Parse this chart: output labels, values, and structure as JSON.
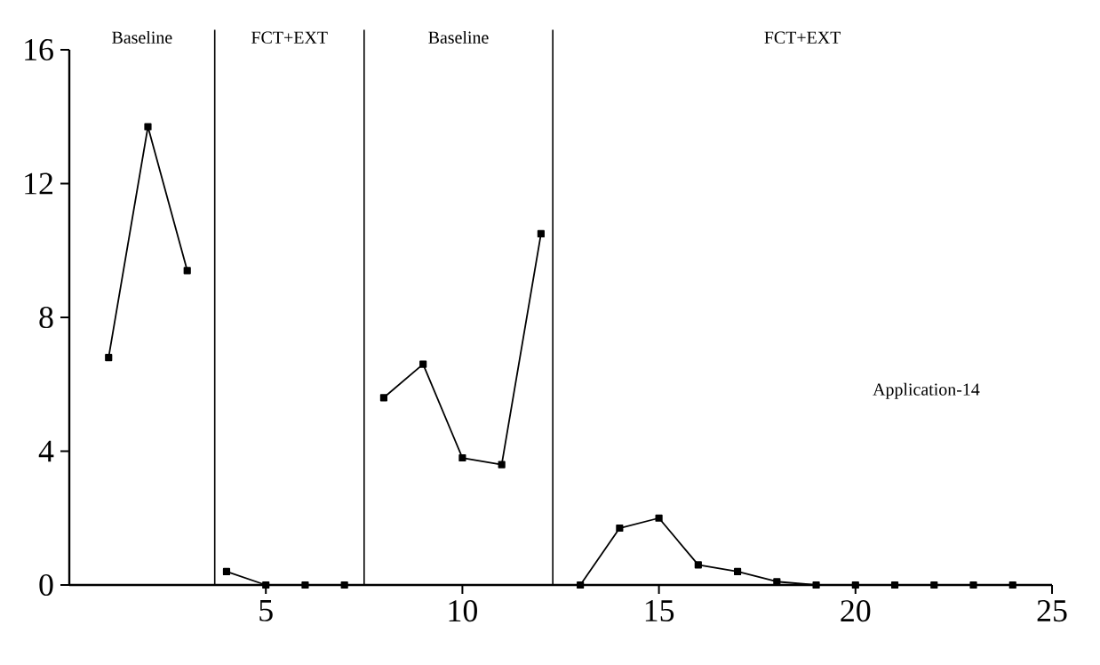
{
  "chart_data": {
    "type": "line",
    "xlim": [
      0,
      25
    ],
    "ylim": [
      0,
      16
    ],
    "xticks": [
      5,
      10,
      15,
      20,
      25
    ],
    "yticks": [
      0,
      4,
      8,
      12,
      16
    ],
    "grid": false,
    "marker": "square",
    "line_style": "solid",
    "series": [
      {
        "color": "#000000",
        "x": [
          1,
          2,
          3
        ],
        "values": [
          6.8,
          13.7,
          9.4
        ]
      },
      {
        "color": "#000000",
        "x": [
          4,
          5,
          6,
          7
        ],
        "values": [
          0.4,
          0,
          0,
          0
        ]
      },
      {
        "color": "#000000",
        "x": [
          8,
          9,
          10,
          11,
          12
        ],
        "values": [
          5.6,
          6.6,
          3.8,
          3.6,
          10.5
        ]
      },
      {
        "color": "#000000",
        "x": [
          13,
          14,
          15,
          16,
          17,
          18,
          19,
          20,
          21,
          22,
          23,
          24
        ],
        "values": [
          0,
          1.7,
          2.0,
          0.6,
          0.4,
          0.1,
          0,
          0,
          0,
          0,
          0,
          0
        ]
      }
    ],
    "ref_lines": [
      {
        "axis": "x",
        "value": 3.7,
        "color": "#000000"
      },
      {
        "axis": "x",
        "value": 7.5,
        "color": "#000000"
      },
      {
        "axis": "x",
        "value": 12.3,
        "color": "#000000"
      }
    ],
    "annotations": [
      "Baseline",
      "FCT+EXT",
      "Baseline",
      "FCT+EXT",
      "Application-14"
    ]
  }
}
